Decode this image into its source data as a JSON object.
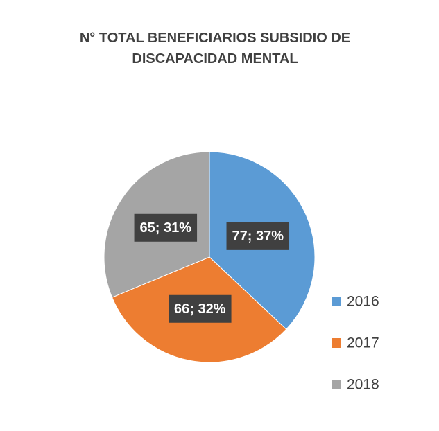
{
  "chart_data": {
    "type": "pie",
    "title": "N°  TOTAL BENEFICIARIOS SUBSIDIO DE DISCAPACIDAD MENTAL",
    "categories": [
      "2016",
      "2017",
      "2018"
    ],
    "values": [
      77,
      66,
      65
    ],
    "value_labels": [
      "77; 37%",
      "66; 32%",
      "65; 31%"
    ],
    "colors": [
      "#5b9bd5",
      "#ed7d31",
      "#a5a5a5"
    ],
    "legend": "right"
  }
}
